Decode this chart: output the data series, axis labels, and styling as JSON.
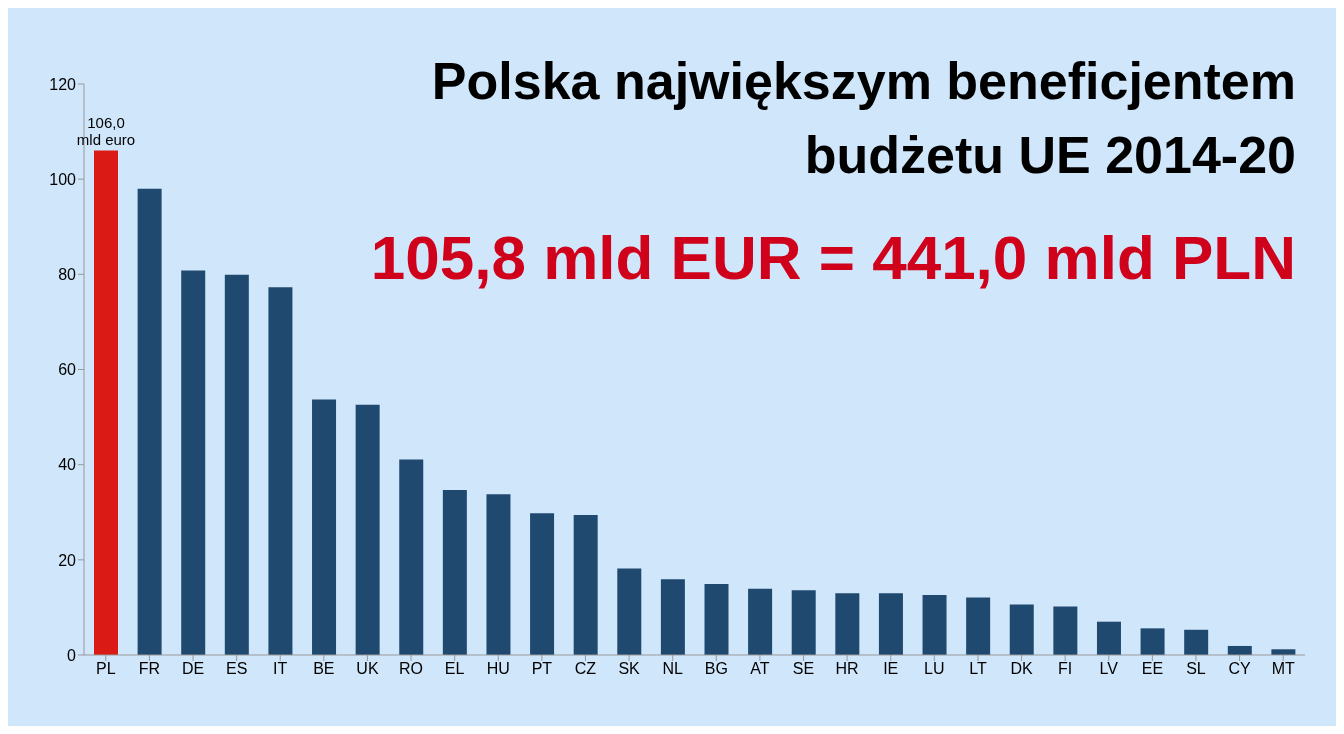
{
  "chart_data": {
    "type": "bar",
    "title": "Polska największym beneficjentem budżetu UE 2014-20",
    "subtitle": "105,8 mld EUR = 441,0 mld PLN",
    "categories": [
      "PL",
      "FR",
      "DE",
      "ES",
      "IT",
      "BE",
      "UK",
      "RO",
      "EL",
      "HU",
      "PT",
      "CZ",
      "SK",
      "NL",
      "BG",
      "AT",
      "SE",
      "HR",
      "IE",
      "LU",
      "LT",
      "DK",
      "FI",
      "LV",
      "EE",
      "SL",
      "CY",
      "MT"
    ],
    "values": [
      106.0,
      98.0,
      80.8,
      79.9,
      77.3,
      53.7,
      52.6,
      41.1,
      34.7,
      33.8,
      29.8,
      29.4,
      18.2,
      15.9,
      14.9,
      13.9,
      13.6,
      13.0,
      13.0,
      12.6,
      12.1,
      10.6,
      10.2,
      7.0,
      5.6,
      5.3,
      1.9,
      1.2
    ],
    "colors": [
      "#d91a15",
      "#1f496f",
      "#1f496f",
      "#1f496f",
      "#1f496f",
      "#1f496f",
      "#1f496f",
      "#1f496f",
      "#1f496f",
      "#1f496f",
      "#1f496f",
      "#1f496f",
      "#1f496f",
      "#1f496f",
      "#1f496f",
      "#1f496f",
      "#1f496f",
      "#1f496f",
      "#1f496f",
      "#1f496f",
      "#1f496f",
      "#1f496f",
      "#1f496f",
      "#1f496f",
      "#1f496f",
      "#1f496f",
      "#1f496f",
      "#1f496f"
    ],
    "value_labels": [
      "106,0 mld euro",
      null,
      null,
      null,
      null,
      null,
      null,
      null,
      null,
      null,
      null,
      null,
      null,
      null,
      null,
      null,
      null,
      null,
      null,
      null,
      null,
      null,
      null,
      null,
      null,
      null,
      null,
      null
    ],
    "ylim": [
      0,
      120
    ],
    "yticks": [
      0,
      20,
      40,
      60,
      80,
      100,
      120
    ],
    "grid": false,
    "legend": false
  }
}
